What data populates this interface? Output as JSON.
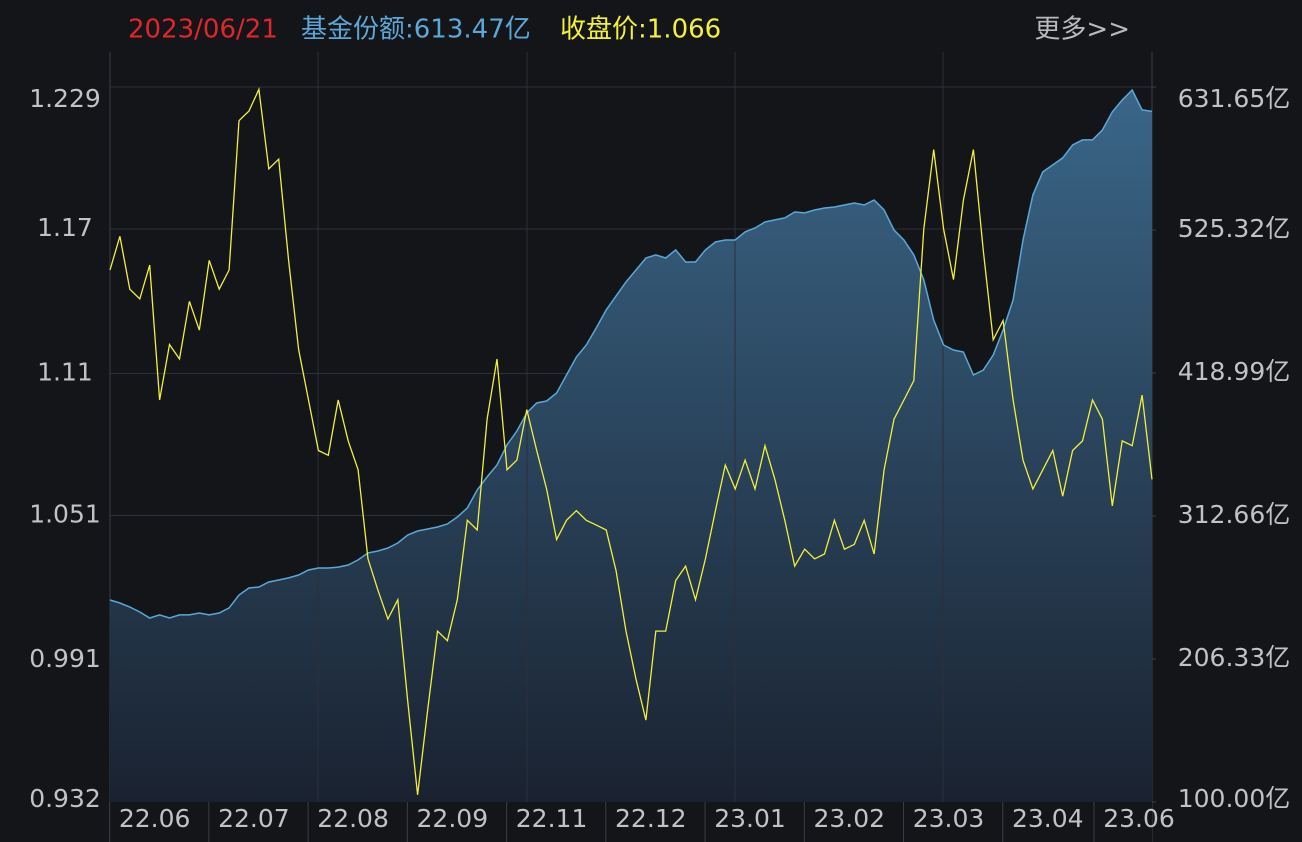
{
  "chart_data": {
    "type": "line",
    "date": "2023/06/21",
    "more_link": "更多>>",
    "categories": [
      null,
      null,
      null,
      null,
      null,
      "22.06",
      null,
      null,
      null,
      null,
      null,
      null,
      null,
      null,
      null,
      "22.07",
      null,
      null,
      null,
      null,
      null,
      null,
      null,
      null,
      null,
      "22.08",
      null,
      null,
      null,
      null,
      null,
      null,
      null,
      null,
      null,
      "22.09",
      null,
      null,
      null,
      null,
      null,
      null,
      null,
      null,
      null,
      "22.11",
      null,
      null,
      null,
      null,
      null,
      null,
      null,
      null,
      null,
      "22.12",
      null,
      null,
      null,
      null,
      null,
      null,
      null,
      null,
      null,
      "23.01",
      null,
      null,
      null,
      null,
      null,
      null,
      null,
      null,
      null,
      "23.02",
      null,
      null,
      null,
      null,
      null,
      null,
      null,
      null,
      null,
      "23.03",
      null,
      null,
      null,
      null,
      null,
      null,
      null,
      null,
      null,
      "23.04",
      null,
      null,
      null,
      null,
      null,
      null,
      null,
      null,
      null,
      "23.06"
    ],
    "ylim": [
      0.932,
      1.229
    ],
    "yticks": [
      0.932,
      0.991,
      1.051,
      1.11,
      1.17,
      1.229
    ],
    "y2lim": [
      100,
      631.65
    ],
    "y2ticks": [
      {
        "value": 100,
        "label": "100.00亿"
      },
      {
        "value": 206.33,
        "label": "206.33亿"
      },
      {
        "value": 312.66,
        "label": "312.66亿"
      },
      {
        "value": 418.99,
        "label": "418.99亿"
      },
      {
        "value": 525.32,
        "label": "525.32亿"
      },
      {
        "value": 631.65,
        "label": "631.65亿"
      }
    ],
    "grid": true,
    "series": [
      {
        "name": "基金份额:613.47亿",
        "color": "#5ba8d8",
        "axis": "y2",
        "fill": true,
        "values": [
          250.2,
          248.0,
          245.0,
          241.3,
          236.8,
          239.1,
          236.8,
          239.1,
          239.1,
          240.5,
          239.1,
          240.5,
          244.3,
          253.9,
          259.1,
          259.9,
          263.6,
          265.1,
          266.6,
          268.8,
          272.5,
          274.0,
          274.0,
          274.7,
          276.2,
          280.0,
          285.2,
          286.6,
          288.9,
          292.6,
          298.5,
          301.5,
          303.0,
          304.5,
          306.7,
          311.9,
          318.6,
          332.0,
          341.7,
          350.6,
          365.5,
          375.9,
          389.3,
          396.7,
          398.2,
          404.1,
          417.5,
          430.9,
          439.8,
          452.5,
          465.9,
          476.3,
          486.7,
          495.6,
          504.5,
          506.8,
          504.5,
          510.5,
          501.5,
          501.5,
          510.5,
          516.4,
          517.9,
          517.9,
          523.9,
          526.8,
          531.3,
          532.8,
          534.3,
          538.7,
          538.0,
          540.2,
          541.7,
          542.4,
          543.9,
          545.4,
          543.9,
          547.6,
          540.2,
          525.3,
          517.9,
          506.8,
          488.2,
          458.4,
          439.8,
          436.1,
          434.6,
          417.5,
          421.2,
          432.4,
          451.0,
          473.3,
          517.9,
          551.4,
          568.5,
          573.7,
          578.9,
          588.5,
          592.3,
          592.3,
          599.7,
          613.1,
          622.0,
          629.4,
          614.6,
          613.47
        ]
      },
      {
        "name": "收盘价:1.066",
        "color": "#f2f03a",
        "axis": "y",
        "values": [
          1.153,
          1.167,
          1.145,
          1.141,
          1.155,
          1.099,
          1.122,
          1.116,
          1.14,
          1.128,
          1.157,
          1.145,
          1.153,
          1.215,
          1.219,
          1.228,
          1.195,
          1.199,
          1.157,
          1.12,
          1.099,
          1.078,
          1.076,
          1.099,
          1.082,
          1.07,
          1.033,
          1.02,
          1.008,
          1.016,
          0.974,
          0.935,
          0.97,
          1.003,
          0.999,
          1.016,
          1.049,
          1.045,
          1.091,
          1.116,
          1.07,
          1.074,
          1.095,
          1.078,
          1.062,
          1.041,
          1.049,
          1.053,
          1.049,
          1.047,
          1.045,
          1.028,
          1.003,
          0.983,
          0.966,
          1.003,
          1.003,
          1.024,
          1.03,
          1.016,
          1.033,
          1.053,
          1.072,
          1.062,
          1.074,
          1.062,
          1.08,
          1.066,
          1.049,
          1.03,
          1.037,
          1.033,
          1.035,
          1.049,
          1.037,
          1.039,
          1.049,
          1.035,
          1.07,
          1.091,
          1.099,
          1.107,
          1.17,
          1.203,
          1.17,
          1.149,
          1.182,
          1.203,
          1.161,
          1.124,
          1.132,
          1.099,
          1.074,
          1.062,
          1.07,
          1.078,
          1.059,
          1.078,
          1.082,
          1.099,
          1.091,
          1.055,
          1.082,
          1.08,
          1.101,
          1.066
        ]
      }
    ]
  }
}
